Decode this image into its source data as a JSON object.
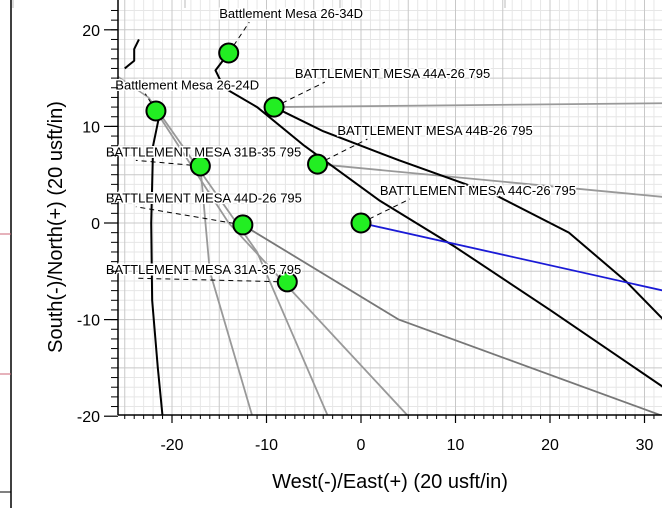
{
  "chart_data": {
    "type": "scatter",
    "xlabel": "West(-)/East(+) (20 usft/in)",
    "ylabel": "South(-)/North(+) (20 usft/in)",
    "xlim": [
      -26,
      32
    ],
    "ylim": [
      -20,
      22
    ],
    "x_ticks": [
      -20,
      -10,
      0,
      10,
      20,
      30
    ],
    "y_ticks": [
      -20,
      -10,
      0,
      10,
      20
    ],
    "x_tick_labels": [
      "-20",
      "-10",
      "0",
      "10",
      "20",
      "30"
    ],
    "y_tick_labels": [
      "-20",
      "-10",
      "0",
      "10",
      "20"
    ],
    "grid": true,
    "minor_grid_step": 1,
    "major_grid_step": 5,
    "colors": {
      "marker_fill": "#22ee22",
      "marker_stroke": "#000000",
      "survey_line": "#000000",
      "plan_line": "#999999",
      "plan_line_dark": "#777777",
      "active_line": "#1a1ad6",
      "grid_major": "#c8c8c8",
      "grid_minor": "#e6e6e6"
    },
    "wells": [
      {
        "label": "Battlement Mesa 26-34D",
        "x": -14,
        "y": 17.6,
        "lx": -15,
        "ly": 21.2
      },
      {
        "label": "BATTLEMENT MESA 44A-26 795",
        "x": -9.2,
        "y": 12,
        "lx": -7,
        "ly": 15
      },
      {
        "label": "Battlement Mesa 26-24D",
        "x": -21.7,
        "y": 11.6,
        "lx": -26,
        "ly": 13.8
      },
      {
        "label": "BATTLEMENT MESA 44B-26 795",
        "x": -4.6,
        "y": 6.1,
        "lx": -2.5,
        "ly": 9.1
      },
      {
        "label": "BATTLEMENT MESA 31B-35 795",
        "x": -17,
        "y": 5.9,
        "lx": -27,
        "ly": 6.9
      },
      {
        "label": "BATTLEMENT MESA 44C-26 795",
        "x": 0,
        "y": 0,
        "lx": 2,
        "ly": 2.9
      },
      {
        "label": "BATTLEMENT MESA 44D-26 795",
        "x": -12.5,
        "y": -0.2,
        "lx": -27,
        "ly": 2.1
      },
      {
        "label": "BATTLEMENT MESA 31A-35 795",
        "x": -7.8,
        "y": -6.1,
        "lx": -27,
        "ly": -5.3
      }
    ],
    "survey_paths": [
      {
        "points": [
          [
            -21.2,
            11.8
          ],
          [
            -22,
            8
          ],
          [
            -22.2,
            0
          ],
          [
            -22.1,
            -8
          ],
          [
            -21.5,
            -15
          ],
          [
            -21,
            -20
          ]
        ]
      },
      {
        "points": [
          [
            -14,
            17.6
          ],
          [
            -15.4,
            15.8
          ],
          [
            -14.5,
            14
          ],
          [
            -11,
            12
          ],
          [
            -6,
            8
          ],
          [
            2,
            2.3
          ],
          [
            10,
            -2.5
          ],
          [
            20,
            -9
          ],
          [
            32,
            -17
          ]
        ]
      },
      {
        "points": [
          [
            -9.2,
            12
          ],
          [
            -4,
            9.5
          ],
          [
            4,
            6.5
          ],
          [
            14,
            3
          ],
          [
            22,
            -1
          ],
          [
            28,
            -6
          ],
          [
            32,
            -10
          ]
        ]
      },
      {
        "points": [
          [
            -23.5,
            19
          ],
          [
            -24,
            18
          ],
          [
            -24,
            16.8
          ],
          [
            -25,
            16
          ]
        ]
      }
    ],
    "plan_paths": [
      {
        "points": [
          [
            -21.7,
            11.6
          ],
          [
            -14,
            0
          ],
          [
            5,
            -20
          ]
        ]
      },
      {
        "points": [
          [
            -17,
            5.9
          ],
          [
            -16,
            -5
          ],
          [
            -11.5,
            -20
          ]
        ]
      },
      {
        "points": [
          [
            -12.5,
            -0.2
          ],
          [
            4,
            -10
          ],
          [
            32,
            -20
          ]
        ]
      },
      {
        "points": [
          [
            -9.2,
            12
          ],
          [
            32,
            12.4
          ]
        ]
      },
      {
        "points": [
          [
            -4.6,
            6.1
          ],
          [
            32,
            2.7
          ]
        ]
      },
      {
        "points": [
          [
            -22.5,
            13
          ],
          [
            -11,
            -3
          ],
          [
            -3.5,
            -20
          ]
        ]
      }
    ],
    "active_paths": [
      {
        "points": [
          [
            0,
            0
          ],
          [
            32,
            -7
          ]
        ]
      }
    ]
  },
  "extra_lines": [
    {
      "points": [
        [
          -22.5,
          13
        ],
        [
          -27,
          16
        ]
      ]
    }
  ]
}
